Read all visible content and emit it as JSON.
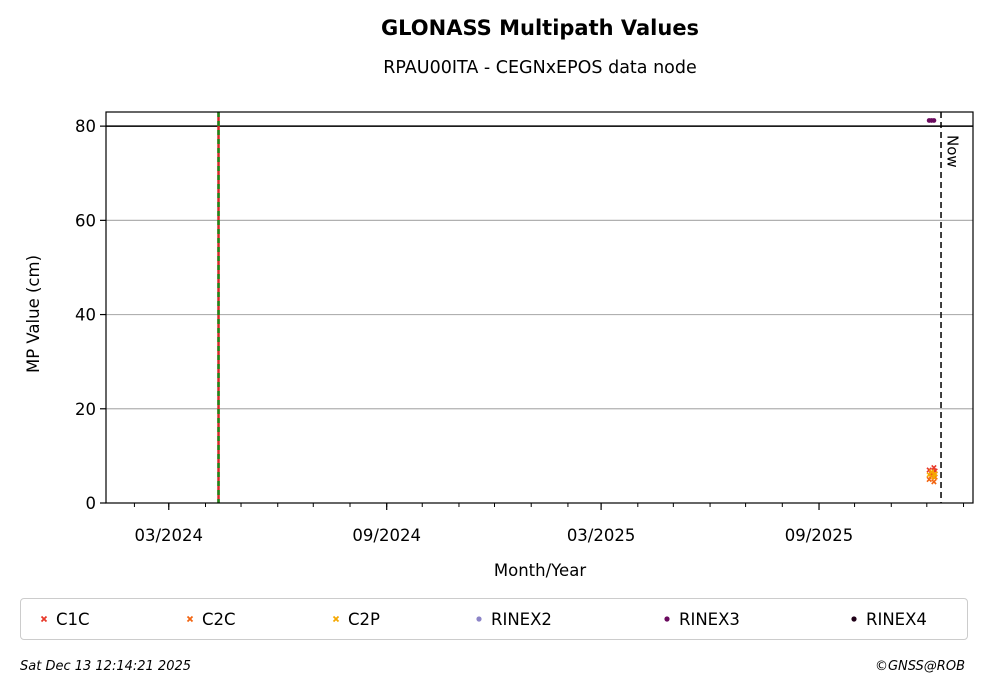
{
  "chart_data": {
    "type": "scatter",
    "title": "GLONASS Multipath Values",
    "subtitle": "RPAU00ITA - CEGNxEPOS data node",
    "xlabel": "Month/Year",
    "ylabel": "MP Value (cm)",
    "xlim": [
      "2024-01-08",
      "2026-01-09"
    ],
    "ylim": [
      0,
      83
    ],
    "x_ticks": [
      "2024-03-01",
      "2024-09-01",
      "2025-03-01",
      "2025-09-01"
    ],
    "x_tick_labels": [
      "03/2024",
      "09/2024",
      "03/2025",
      "09/2025"
    ],
    "y_ticks": [
      0,
      20,
      40,
      60,
      80
    ],
    "grid": "horizontal",
    "threshold_line": 80,
    "event_line": "2024-04-12",
    "now_line": "2025-12-13",
    "now_label": "Now",
    "legend_position": "below",
    "series": [
      {
        "name": "C1C",
        "marker": "x",
        "color": "#e8392a",
        "x": [
          "2025-12-03",
          "2025-12-05",
          "2025-12-07",
          "2025-12-08"
        ],
        "y": [
          7.0,
          6.2,
          7.5,
          6.8
        ]
      },
      {
        "name": "C2C",
        "marker": "x",
        "color": "#f26511",
        "x": [
          "2025-12-03",
          "2025-12-05",
          "2025-12-07",
          "2025-12-08"
        ],
        "y": [
          5.0,
          5.8,
          4.5,
          5.5
        ]
      },
      {
        "name": "C2P",
        "marker": "x",
        "color": "#f5a800",
        "x": [
          "2025-12-03",
          "2025-12-05",
          "2025-12-07",
          "2025-12-08"
        ],
        "y": [
          6.0,
          6.6,
          5.5,
          6.2
        ]
      },
      {
        "name": "RINEX2",
        "marker": "dot",
        "color": "#8c84c7",
        "x": [],
        "y": []
      },
      {
        "name": "RINEX3",
        "marker": "dot",
        "color": "#6a0a5e",
        "x": [
          "2025-12-03",
          "2025-12-05",
          "2025-12-07"
        ],
        "y": [
          81.2,
          81.2,
          81.2
        ]
      },
      {
        "name": "RINEX4",
        "marker": "dot",
        "color": "#200018",
        "x": [],
        "y": []
      }
    ]
  },
  "footer": {
    "timestamp": "Sat Dec 13 12:14:21 2025",
    "credit": "©GNSS@ROB"
  }
}
